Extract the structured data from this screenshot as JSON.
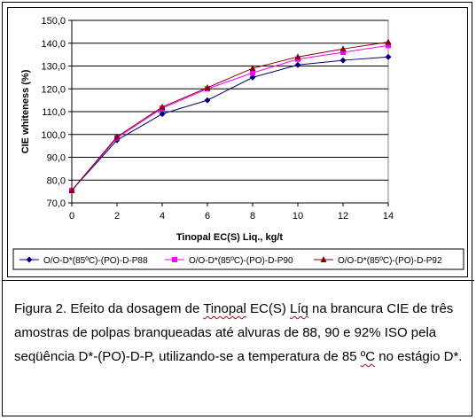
{
  "chart_data": {
    "type": "line",
    "title": "",
    "xlabel": "Tinopal EC(S) Liq., kg/t",
    "ylabel": "CIE whiteness (%)",
    "x": [
      0,
      2,
      4,
      6,
      8,
      10,
      12,
      14
    ],
    "xlim": [
      0,
      14
    ],
    "ylim": [
      70,
      150
    ],
    "x_ticks": [
      "0",
      "2",
      "4",
      "6",
      "8",
      "10",
      "12",
      "14"
    ],
    "y_ticks": [
      "70,0",
      "80,0",
      "90,0",
      "100,0",
      "110,0",
      "120,0",
      "130,0",
      "140,0",
      "150,0"
    ],
    "grid": "horizontal",
    "legend_position": "bottom",
    "series": [
      {
        "name": "O/O-D*(85ºC)-(PO)-D-P88",
        "color": "#000080",
        "marker": "diamond",
        "values": [
          75.5,
          97.5,
          109.0,
          115.0,
          125.0,
          130.5,
          132.5,
          134.0
        ]
      },
      {
        "name": "O/O-D*(85ºC)-(PO)-D-P90",
        "color": "#FF00FF",
        "marker": "square",
        "values": [
          75.5,
          98.5,
          111.5,
          120.0,
          127.0,
          133.0,
          136.0,
          139.0
        ]
      },
      {
        "name": "O/O-D*(85ºC)-(PO)-D-P92",
        "color": "#800000",
        "marker": "triangle",
        "values": [
          75.5,
          99.0,
          112.0,
          120.5,
          129.0,
          134.0,
          137.5,
          140.5
        ]
      }
    ]
  },
  "caption": {
    "prefix": "Figura 2. Efeito da dosagem de ",
    "word1": "Tinopal",
    "mid1": " EC(S) ",
    "word2": "Líq",
    "mid2": " na brancura CIE de três amostras de polpas branqueadas até alvuras de 88, 90 e 92% ISO pela seqüência D*-(PO)-D-P, utilizando-se a temperatura de 85 ",
    "word3": "ºC",
    "suffix": " no estágio D*."
  }
}
